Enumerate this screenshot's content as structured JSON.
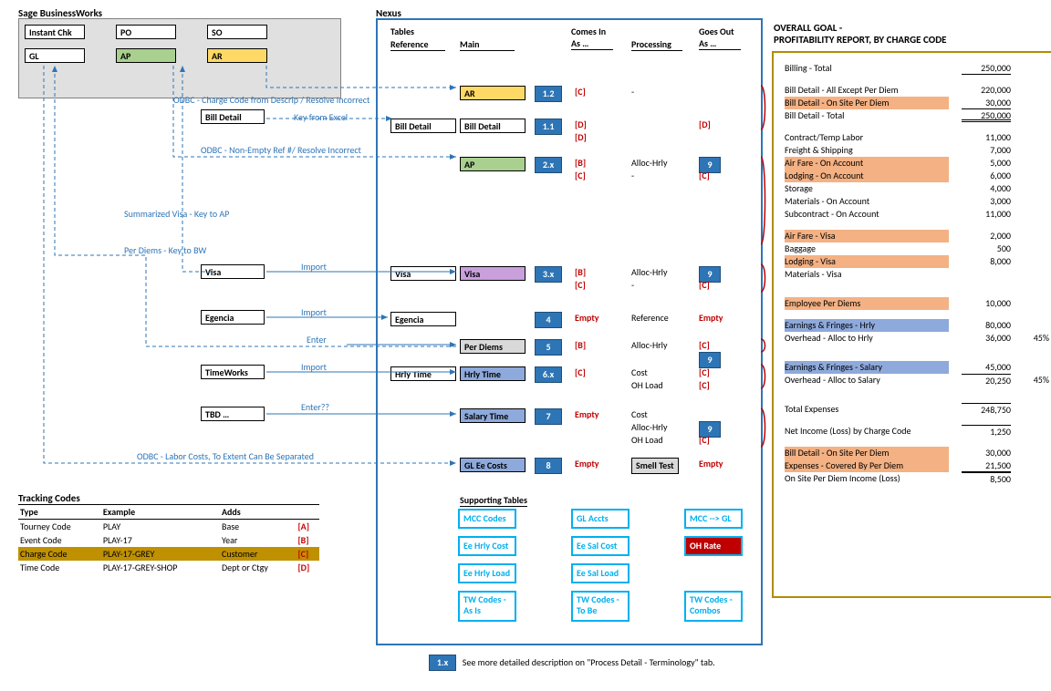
{
  "titles": {
    "sage": "Sage BusinessWorks",
    "nexus": "Nexus"
  },
  "sage": {
    "r1": [
      "Instant Chk",
      "PO",
      "SO"
    ],
    "r2": [
      "GL",
      "AP",
      "AR"
    ]
  },
  "leftBoxes": {
    "billDetail": "Bill Detail",
    "visa": "Visa",
    "egencia": "Egencia",
    "timeworks": "TimeWorks",
    "tbd": "TBD …"
  },
  "blueLabels": {
    "odbc1": "ODBC - Charge Code from Descrip / Resolve Incorrect",
    "keyExcel": "Key from Excel",
    "odbc2": "ODBC - Non-Empty Ref #/ Resolve Incorrect",
    "sumVisa": "Summarized Visa - Key to AP",
    "perDiemKey": "Per Diems - Key to BW",
    "import1": "Import",
    "import2": "Import",
    "enter": "Enter",
    "import3": "Import",
    "enterQ": "Enter??",
    "odbc3": "ODBC - Labor Costs, To Extent Can Be Separated"
  },
  "nexus": {
    "hdr": {
      "tables": "Tables",
      "reference": "Reference",
      "main": "Main",
      "comesIn": "Comes In\nAs …",
      "processing": "Processing",
      "goesOut": "Goes Out\nAs …"
    },
    "rows": [
      {
        "ref": null,
        "main": "AR",
        "mainColor": "yellow",
        "num": "1.2",
        "in": [
          "[C]"
        ],
        "proc": [
          "-"
        ],
        "out": [
          ""
        ]
      },
      {
        "ref": "Bill Detail",
        "main": "Bill Detail",
        "mainColor": "white",
        "num": "1.1",
        "in": [
          "[D]",
          "[D]"
        ],
        "proc": [
          "",
          ""
        ],
        "out": [
          "[D]",
          ""
        ]
      },
      {
        "ref": null,
        "main": "AP",
        "mainColor": "green",
        "num": "2.x",
        "in": [
          "[B]",
          "[C]"
        ],
        "proc": [
          "Alloc-Hrly",
          "-"
        ],
        "out": [
          "9",
          "[C]"
        ],
        "badgeOut": true
      },
      {
        "ref": "Visa",
        "main": "Visa",
        "mainColor": "purple",
        "num": "3.x",
        "in": [
          "[B]",
          "[C]"
        ],
        "proc": [
          "Alloc-Hrly",
          "-"
        ],
        "out": [
          "9",
          "[C]"
        ],
        "badgeOut": true
      },
      {
        "ref": "Egencia",
        "main": null,
        "num": "4",
        "in": [
          "Empty"
        ],
        "proc": [
          "Reference"
        ],
        "out": [
          "Empty"
        ]
      },
      {
        "ref": null,
        "main": "Per Diems",
        "mainColor": "grey",
        "num": "5",
        "in": [
          "[B]"
        ],
        "proc": [
          "Alloc-Hrly"
        ],
        "out": [
          "[C]",
          "9"
        ],
        "badgeSecond": true
      },
      {
        "ref": "Hrly Time",
        "main": "Hrly Time",
        "mainColor": "blue",
        "num": "6.x",
        "in": [
          "[C]",
          ""
        ],
        "proc": [
          "Cost",
          "OH Load"
        ],
        "out": [
          "[C]",
          "[C]"
        ]
      },
      {
        "ref": null,
        "main": "Salary Time",
        "mainColor": "blue",
        "num": "7",
        "in": [
          "Empty",
          "",
          ""
        ],
        "proc": [
          "Cost",
          "Alloc-Hrly",
          "OH Load"
        ],
        "out": [
          "",
          "[C]",
          "[C]"
        ],
        "badgeSecond9": true
      },
      {
        "ref": null,
        "main": "GL Ee Costs",
        "mainColor": "blue",
        "num": "8",
        "in": [
          "Empty"
        ],
        "proc": [
          "Smell Test"
        ],
        "out": [
          "Empty"
        ],
        "smell": true
      }
    ],
    "supportHdr": "Supporting Tables",
    "support": [
      [
        "MCC Codes",
        "GL Accts",
        "MCC --> GL"
      ],
      [
        "Ee Hrly Cost",
        "Ee Sal Cost",
        "OH Rate"
      ],
      [
        "Ee Hrly Load",
        "Ee Sal Load",
        ""
      ],
      [
        "TW Codes -\nAs Is",
        "TW Codes -\nTo Be",
        "TW Codes -\nCombos"
      ]
    ]
  },
  "tracking": {
    "title": "Tracking Codes",
    "hdr": [
      "Type",
      "Example",
      "Adds",
      ""
    ],
    "rows": [
      [
        "Tourney Code",
        "PLAY",
        "Base",
        "[A]"
      ],
      [
        "Event Code",
        "PLAY-17",
        "Year",
        "[B]"
      ],
      [
        "Charge Code",
        "PLAY-17-GREY",
        "Customer",
        "[C]"
      ],
      [
        "Time Code",
        "PLAY-17-GREY-SHOP",
        "Dept or Ctgy",
        "[D]"
      ]
    ]
  },
  "right": {
    "title": "OVERALL GOAL -\nPROFITABILITY REPORT, BY CHARGE CODE",
    "lines": [
      {
        "lab": "Billing - Total",
        "val": "250,000",
        "bb": "single",
        "gapAfter": true
      },
      {
        "lab": "Bill Detail - All Except Per Diem",
        "val": "220,000"
      },
      {
        "lab": "Bill Detail - On Site Per Diem",
        "val": "30,000",
        "hl": "orange",
        "bb": "singleunder"
      },
      {
        "lab": "Bill Detail - Total",
        "val": "250,000",
        "bb": "double",
        "gapAfter": true
      },
      {
        "lab": "Contract/Temp Labor",
        "val": "11,000"
      },
      {
        "lab": "Freight & Shipping",
        "val": "7,000"
      },
      {
        "lab": "Air Fare - On Account",
        "val": "5,000",
        "hl": "orange"
      },
      {
        "lab": "Lodging - On Account",
        "val": "6,000",
        "hl": "orange"
      },
      {
        "lab": "Storage",
        "val": "4,000"
      },
      {
        "lab": "Materials - On Account",
        "val": "3,000"
      },
      {
        "lab": "Subcontract - On Account",
        "val": "11,000",
        "gapAfter": true
      },
      {
        "lab": "Air Fare - Visa",
        "val": "2,000",
        "hl": "orange"
      },
      {
        "lab": "Baggage",
        "val": "500"
      },
      {
        "lab": "Lodging - Visa",
        "val": "8,000",
        "hl": "orange"
      },
      {
        "lab": "Materials - Visa",
        "val": "",
        "gapAfter": true,
        "gapAfterBig": true
      },
      {
        "lab": "Employee Per Diems",
        "val": "10,000",
        "hl": "orange",
        "gapAfter": true
      },
      {
        "lab": "Earnings & Fringes - Hrly",
        "val": "80,000",
        "hl": "blue"
      },
      {
        "lab": "Overhead - Alloc to Hrly",
        "val": "36,000",
        "pct": "45%",
        "gapAfter": true,
        "gapAfterBig": true
      },
      {
        "lab": "Earnings & Fringes - Salary",
        "val": "45,000",
        "hl": "blue"
      },
      {
        "lab": "Overhead - Alloc to Salary",
        "val": "20,250",
        "pct": "45%",
        "gapAfter": true,
        "gapAfterBig": true,
        "bb": "singleval"
      },
      {
        "lab": "Total Expenses",
        "val": "248,750",
        "bb": "singleval",
        "gapAfter": true
      },
      {
        "lab": "Net Income (Loss) by Charge Code",
        "val": "1,250",
        "bb": "singleval",
        "gapAfter": true
      },
      {
        "lab": "Bill Detail - On Site Per Diem",
        "val": "30,000",
        "hl": "orange"
      },
      {
        "lab": "Expenses - Covered By Per Diem",
        "val": "21,500",
        "hl": "orange",
        "bb": "singleunder"
      },
      {
        "lab": "On Site Per Diem Income (Loss)",
        "val": "8,500",
        "bb": "singleval"
      }
    ]
  },
  "footnote": {
    "badge": "1.x",
    "text": "See more detailed description on \"Process Detail - Terminology\" tab."
  },
  "colors": {
    "blue": "#2e75b6",
    "darkblue": "#1f4e79",
    "red": "#c00000",
    "orange": "#f4b183",
    "green": "#a9d08e",
    "yellow": "#ffd966",
    "purple": "#c9a0dc",
    "grey": "#d9d9d9",
    "gold": "#b28c00",
    "cyan": "#00b0f0"
  }
}
